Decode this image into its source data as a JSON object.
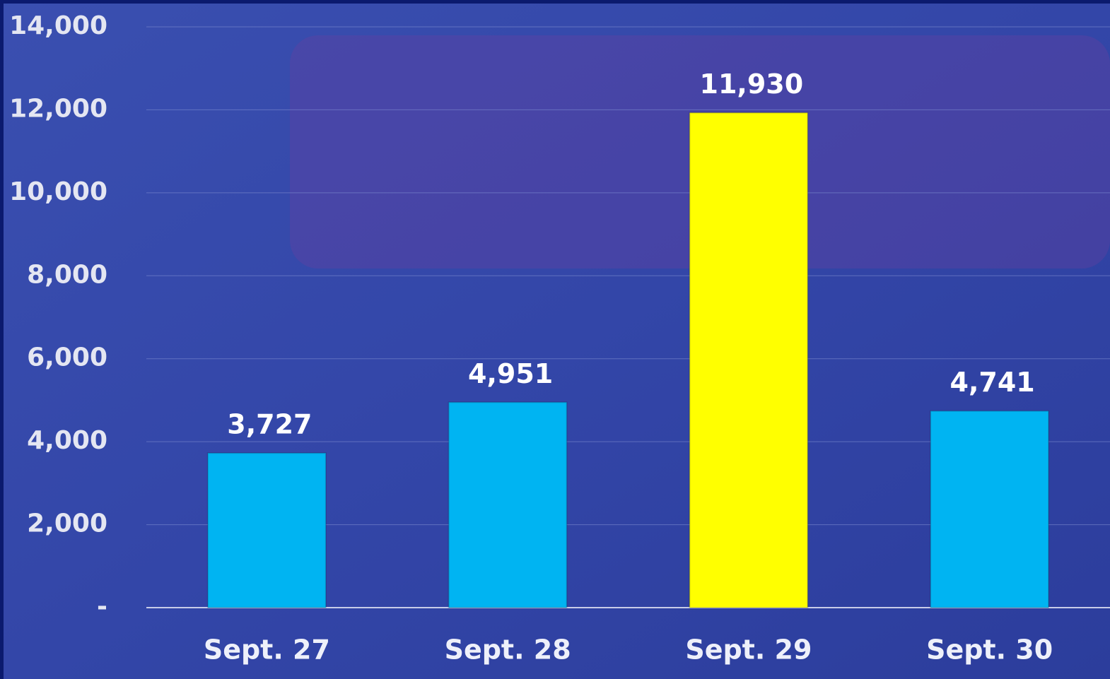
{
  "chart_data": {
    "type": "bar",
    "categories": [
      "Sept. 27",
      "Sept. 28",
      "Sept. 29",
      "Sept. 30"
    ],
    "values": [
      3727,
      4951,
      11930,
      4741
    ],
    "value_labels": [
      "3,727",
      "4,951",
      "11,930",
      "4,741"
    ],
    "colors": [
      "#00b4f2",
      "#00b4f2",
      "#ffff00",
      "#00b4f2"
    ],
    "ylim": [
      0,
      14000
    ],
    "yticks": [
      {
        "value": 0,
        "label": "-"
      },
      {
        "value": 2000,
        "label": "2,000"
      },
      {
        "value": 4000,
        "label": "4,000"
      },
      {
        "value": 6000,
        "label": "6,000"
      },
      {
        "value": 8000,
        "label": "8,000"
      },
      {
        "value": 10000,
        "label": "10,000"
      },
      {
        "value": 12000,
        "label": "12,000"
      },
      {
        "value": 14000,
        "label": "14,000"
      }
    ],
    "grid": true
  }
}
